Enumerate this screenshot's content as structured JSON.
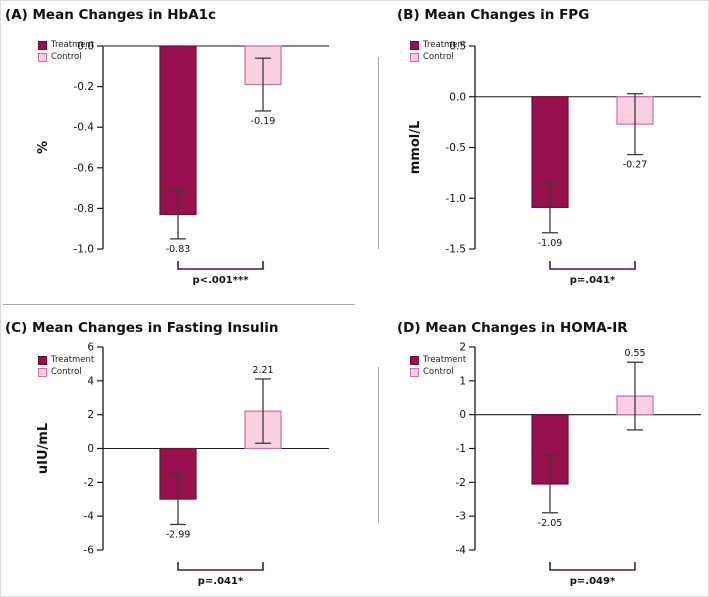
{
  "figure": {
    "legend": {
      "treatment": "Treatment",
      "control": "Control"
    }
  },
  "colors": {
    "treatment_fill": "#96114E",
    "treatment_border": "#6E0C39",
    "control_fill": "#F8CFE3",
    "control_border": "#CE6EA4",
    "error_bar": "#3a3a3a",
    "bracket": "#54123B",
    "axis": "#1a1a1a",
    "divider": "#a8a8a8",
    "text": "#111111"
  },
  "chart_data": [
    {
      "type": "bar",
      "panel": "A",
      "title": "(A) Mean Changes in HbA1c",
      "ylabel": "%",
      "ymax": 0,
      "ymin": -1.0,
      "yticks": [
        "0.0",
        "-0.2",
        "-0.4",
        "-0.6",
        "-0.8",
        "-1.0"
      ],
      "ytick_values": [
        0,
        -0.2,
        -0.4,
        -0.6,
        -0.8,
        -1.0
      ],
      "categories": [
        "Treatment",
        "Control"
      ],
      "series": [
        {
          "name": "Treatment",
          "value": -0.83,
          "error": 0.12,
          "label": "-0.83"
        },
        {
          "name": "Control",
          "value": -0.19,
          "error": 0.13,
          "label": "-0.19"
        }
      ],
      "p_label": "p<.001***",
      "legend_position": "top-left",
      "grid": false
    },
    {
      "type": "bar",
      "panel": "B",
      "title": "(B) Mean Changes in FPG",
      "ylabel": "mmol/L",
      "ymax": 0.5,
      "ymin": -1.5,
      "yticks": [
        "0.5",
        "0.0",
        "-0.5",
        "-1.0",
        "-1.5"
      ],
      "ytick_values": [
        0.5,
        0,
        -0.5,
        -1.0,
        -1.5
      ],
      "categories": [
        "Treatment",
        "Control"
      ],
      "series": [
        {
          "name": "Treatment",
          "value": -1.09,
          "error": 0.25,
          "label": "-1.09"
        },
        {
          "name": "Control",
          "value": -0.27,
          "error": 0.3,
          "label": "-0.27"
        }
      ],
      "p_label": "p=.041*",
      "legend_position": "top-left",
      "grid": false
    },
    {
      "type": "bar",
      "panel": "C",
      "title": "(C) Mean Changes in Fasting Insulin",
      "ylabel": "uIU/mL",
      "ymax": 6,
      "ymin": -6,
      "yticks": [
        "6",
        "4",
        "2",
        "0",
        "-2",
        "-4",
        "-6"
      ],
      "ytick_values": [
        6,
        4,
        2,
        0,
        -2,
        -4,
        -6
      ],
      "categories": [
        "Treatment",
        "Control"
      ],
      "series": [
        {
          "name": "Treatment",
          "value": -2.99,
          "error": 1.5,
          "label": "-2.99"
        },
        {
          "name": "Control",
          "value": 2.21,
          "error": 1.9,
          "label": "2.21"
        }
      ],
      "p_label": "p=.041*",
      "legend_position": "top-left",
      "grid": false
    },
    {
      "type": "bar",
      "panel": "D",
      "title": "(D) Mean Changes in HOMA-IR",
      "ylabel": "",
      "ymax": 2,
      "ymin": -4,
      "yticks": [
        "2",
        "1",
        "0",
        "-1",
        "-2",
        "-3",
        "-4"
      ],
      "ytick_values": [
        2,
        1,
        0,
        -1,
        -2,
        -3,
        -4
      ],
      "categories": [
        "Treatment",
        "Control"
      ],
      "series": [
        {
          "name": "Treatment",
          "value": -2.05,
          "error": 0.85,
          "label": "-2.05"
        },
        {
          "name": "Control",
          "value": 0.55,
          "error": 1.0,
          "label": "0.55"
        }
      ],
      "p_label": "p=.049*",
      "legend_position": "top-left",
      "grid": false
    }
  ]
}
